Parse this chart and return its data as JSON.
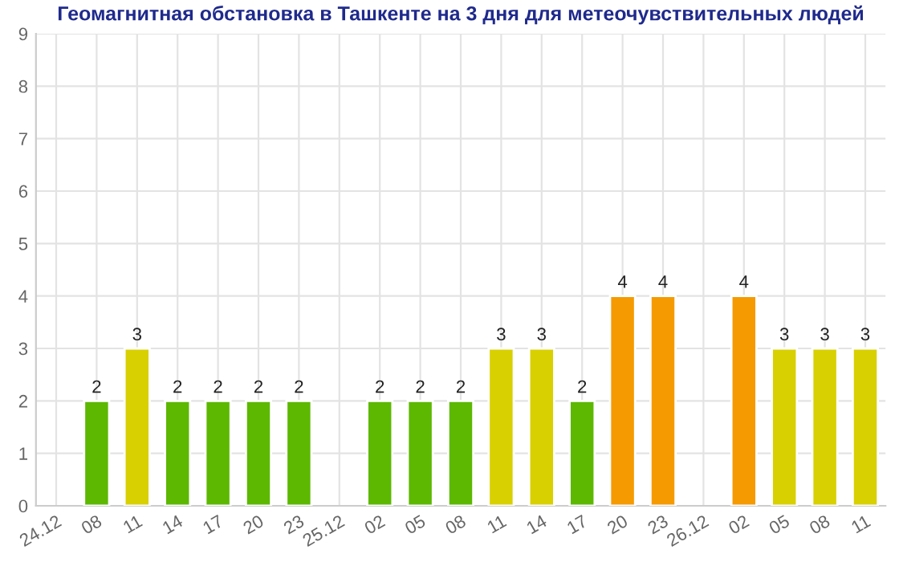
{
  "chart_data": {
    "type": "bar",
    "title": "Геомагнитная обстановка в Ташкенте на 3 дня для метеочувствительных людей",
    "categories": [
      "24.12",
      "08",
      "11",
      "14",
      "17",
      "20",
      "23",
      "25.12",
      "02",
      "05",
      "08",
      "11",
      "14",
      "17",
      "20",
      "23",
      "26.12",
      "02",
      "05",
      "08",
      "11"
    ],
    "values": [
      null,
      2,
      3,
      2,
      2,
      2,
      2,
      null,
      2,
      2,
      2,
      3,
      3,
      2,
      4,
      4,
      null,
      4,
      3,
      3,
      3
    ],
    "colors": [
      "#5cb800",
      "#5cb800",
      "#d8d000",
      "#5cb800",
      "#5cb800",
      "#5cb800",
      "#5cb800",
      "#5cb800",
      "#5cb800",
      "#5cb800",
      "#5cb800",
      "#d8d000",
      "#d8d000",
      "#5cb800",
      "#f59a00",
      "#f59a00",
      "#5cb800",
      "#f59a00",
      "#d8d000",
      "#d8d000",
      "#d8d000"
    ],
    "ylim": [
      0,
      9
    ],
    "yticks": [
      0,
      1,
      2,
      3,
      4,
      5,
      6,
      7,
      8,
      9
    ],
    "grid": true,
    "data_labels": true
  }
}
